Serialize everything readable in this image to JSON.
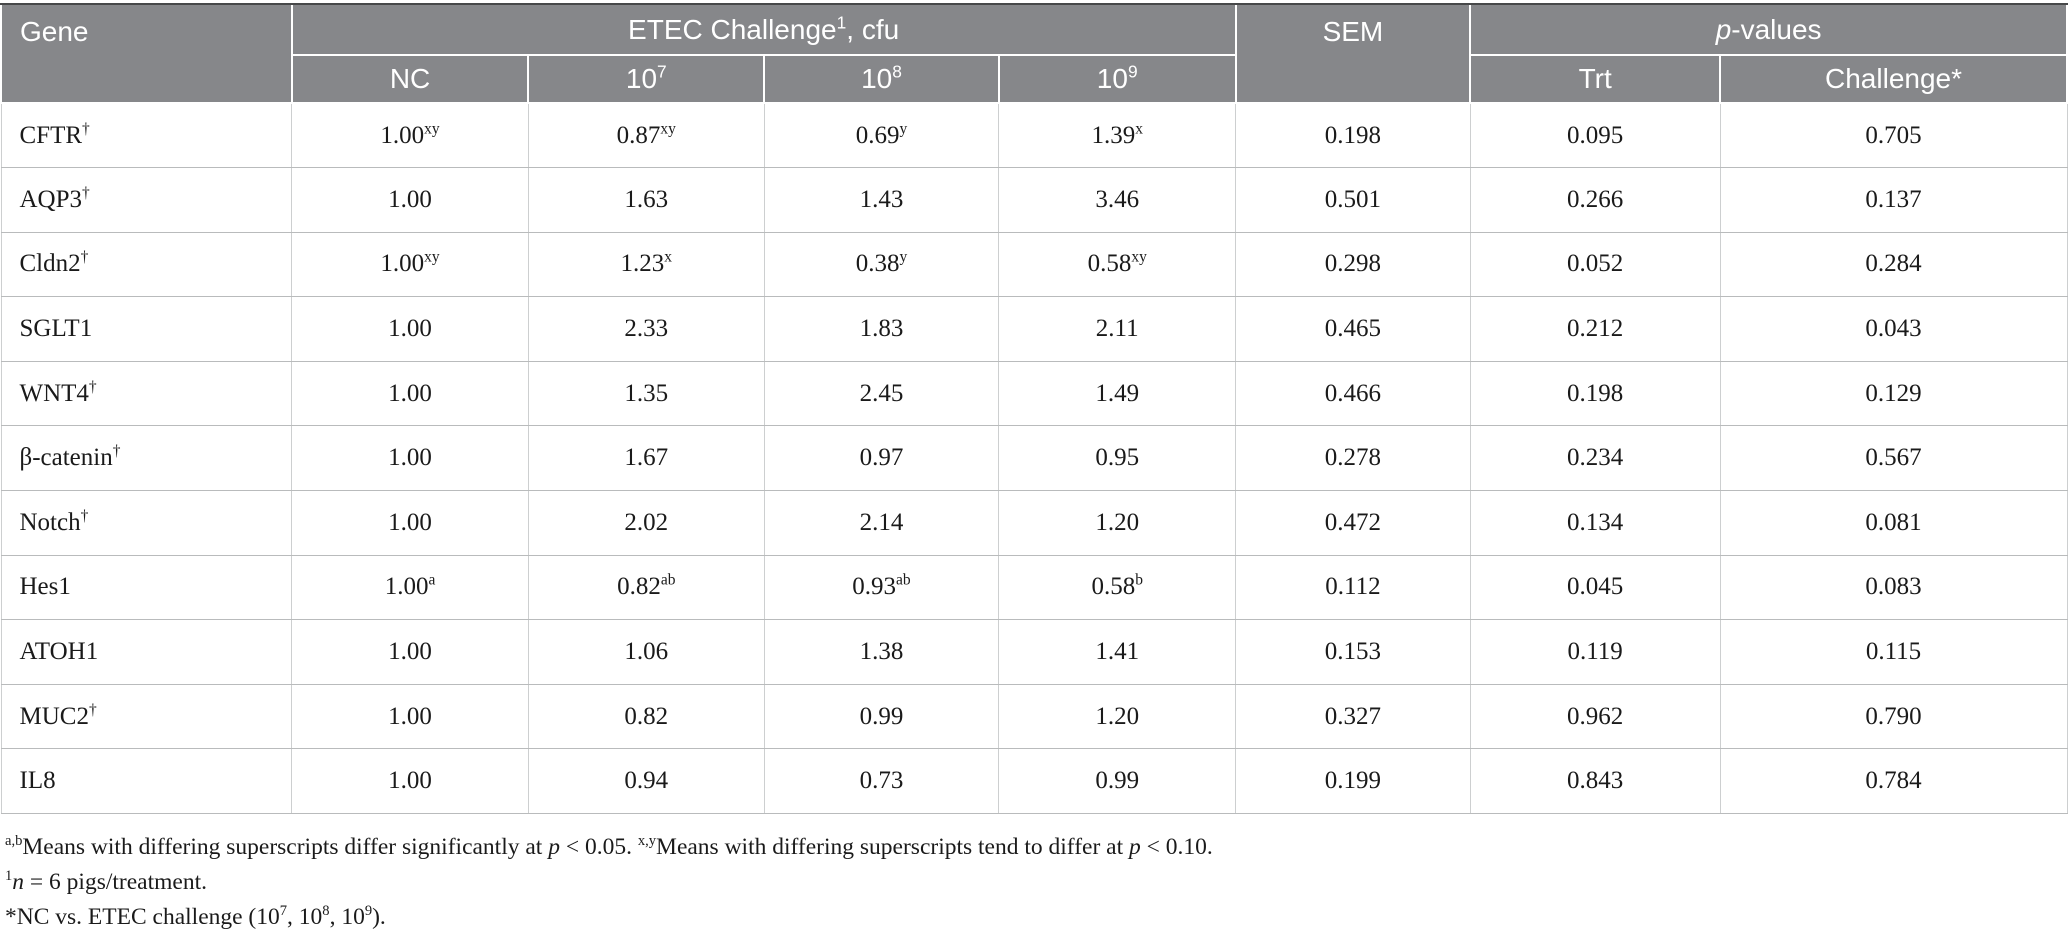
{
  "colors": {
    "header_bg": "#86878a",
    "header_text": "#ffffff",
    "body_text": "#1a1a1a",
    "grid_line": "#cdcfd0",
    "row_line": "#b9bbbc",
    "top_rule": "#474849"
  },
  "table": {
    "header": {
      "gene": "Gene",
      "etec": {
        "pre": "ETEC Challenge",
        "sup": "1",
        "post": ", cfu"
      },
      "sem": "SEM",
      "pvalues": {
        "i": "p",
        "post": "-values"
      },
      "sub": [
        {
          "text": "NC",
          "sup": ""
        },
        {
          "text": "10",
          "sup": "7"
        },
        {
          "text": "10",
          "sup": "8"
        },
        {
          "text": "10",
          "sup": "9"
        },
        {
          "text": "Trt",
          "sup": ""
        },
        {
          "text": "Challenge*",
          "sup": ""
        }
      ]
    },
    "rows": [
      {
        "gene": {
          "text": "CFTR",
          "sup": "†"
        },
        "values": [
          {
            "text": "1.00",
            "sup": "xy"
          },
          {
            "text": "0.87",
            "sup": "xy"
          },
          {
            "text": "0.69",
            "sup": "y"
          },
          {
            "text": "1.39",
            "sup": "x"
          },
          {
            "text": "0.198",
            "sup": ""
          },
          {
            "text": "0.095",
            "sup": ""
          },
          {
            "text": "0.705",
            "sup": ""
          }
        ]
      },
      {
        "gene": {
          "text": "AQP3",
          "sup": "†"
        },
        "values": [
          {
            "text": "1.00",
            "sup": ""
          },
          {
            "text": "1.63",
            "sup": ""
          },
          {
            "text": "1.43",
            "sup": ""
          },
          {
            "text": "3.46",
            "sup": ""
          },
          {
            "text": "0.501",
            "sup": ""
          },
          {
            "text": "0.266",
            "sup": ""
          },
          {
            "text": "0.137",
            "sup": ""
          }
        ]
      },
      {
        "gene": {
          "text": "Cldn2",
          "sup": "†"
        },
        "values": [
          {
            "text": "1.00",
            "sup": "xy"
          },
          {
            "text": "1.23",
            "sup": "x"
          },
          {
            "text": "0.38",
            "sup": "y"
          },
          {
            "text": "0.58",
            "sup": "xy"
          },
          {
            "text": "0.298",
            "sup": ""
          },
          {
            "text": "0.052",
            "sup": ""
          },
          {
            "text": "0.284",
            "sup": ""
          }
        ]
      },
      {
        "gene": {
          "text": "SGLT1",
          "sup": ""
        },
        "values": [
          {
            "text": "1.00",
            "sup": ""
          },
          {
            "text": "2.33",
            "sup": ""
          },
          {
            "text": "1.83",
            "sup": ""
          },
          {
            "text": "2.11",
            "sup": ""
          },
          {
            "text": "0.465",
            "sup": ""
          },
          {
            "text": "0.212",
            "sup": ""
          },
          {
            "text": "0.043",
            "sup": ""
          }
        ]
      },
      {
        "gene": {
          "text": "WNT4",
          "sup": "†"
        },
        "values": [
          {
            "text": "1.00",
            "sup": ""
          },
          {
            "text": "1.35",
            "sup": ""
          },
          {
            "text": "2.45",
            "sup": ""
          },
          {
            "text": "1.49",
            "sup": ""
          },
          {
            "text": "0.466",
            "sup": ""
          },
          {
            "text": "0.198",
            "sup": ""
          },
          {
            "text": "0.129",
            "sup": ""
          }
        ]
      },
      {
        "gene": {
          "text": "β-catenin",
          "sup": "†"
        },
        "values": [
          {
            "text": "1.00",
            "sup": ""
          },
          {
            "text": "1.67",
            "sup": ""
          },
          {
            "text": "0.97",
            "sup": ""
          },
          {
            "text": "0.95",
            "sup": ""
          },
          {
            "text": "0.278",
            "sup": ""
          },
          {
            "text": "0.234",
            "sup": ""
          },
          {
            "text": "0.567",
            "sup": ""
          }
        ]
      },
      {
        "gene": {
          "text": "Notch",
          "sup": "†"
        },
        "values": [
          {
            "text": "1.00",
            "sup": ""
          },
          {
            "text": "2.02",
            "sup": ""
          },
          {
            "text": "2.14",
            "sup": ""
          },
          {
            "text": "1.20",
            "sup": ""
          },
          {
            "text": "0.472",
            "sup": ""
          },
          {
            "text": "0.134",
            "sup": ""
          },
          {
            "text": "0.081",
            "sup": ""
          }
        ]
      },
      {
        "gene": {
          "text": "Hes1",
          "sup": ""
        },
        "values": [
          {
            "text": "1.00",
            "sup": "a"
          },
          {
            "text": "0.82",
            "sup": "ab"
          },
          {
            "text": "0.93",
            "sup": "ab"
          },
          {
            "text": "0.58",
            "sup": "b"
          },
          {
            "text": "0.112",
            "sup": ""
          },
          {
            "text": "0.045",
            "sup": ""
          },
          {
            "text": "0.083",
            "sup": ""
          }
        ]
      },
      {
        "gene": {
          "text": "ATOH1",
          "sup": ""
        },
        "values": [
          {
            "text": "1.00",
            "sup": ""
          },
          {
            "text": "1.06",
            "sup": ""
          },
          {
            "text": "1.38",
            "sup": ""
          },
          {
            "text": "1.41",
            "sup": ""
          },
          {
            "text": "0.153",
            "sup": ""
          },
          {
            "text": "0.119",
            "sup": ""
          },
          {
            "text": "0.115",
            "sup": ""
          }
        ]
      },
      {
        "gene": {
          "text": "MUC2",
          "sup": "†"
        },
        "values": [
          {
            "text": "1.00",
            "sup": ""
          },
          {
            "text": "0.82",
            "sup": ""
          },
          {
            "text": "0.99",
            "sup": ""
          },
          {
            "text": "1.20",
            "sup": ""
          },
          {
            "text": "0.327",
            "sup": ""
          },
          {
            "text": "0.962",
            "sup": ""
          },
          {
            "text": "0.790",
            "sup": ""
          }
        ]
      },
      {
        "gene": {
          "text": "IL8",
          "sup": ""
        },
        "values": [
          {
            "text": "1.00",
            "sup": ""
          },
          {
            "text": "0.94",
            "sup": ""
          },
          {
            "text": "0.73",
            "sup": ""
          },
          {
            "text": "0.99",
            "sup": ""
          },
          {
            "text": "0.199",
            "sup": ""
          },
          {
            "text": "0.843",
            "sup": ""
          },
          {
            "text": "0.784",
            "sup": ""
          }
        ]
      }
    ]
  },
  "footnotes": [
    [
      {
        "s": "sup",
        "v": "a,b"
      },
      {
        "v": "Means with differing superscripts differ significantly at "
      },
      {
        "s": "i",
        "v": "p"
      },
      {
        "v": " < 0.05. "
      },
      {
        "s": "sup",
        "v": "x,y"
      },
      {
        "v": "Means with differing superscripts tend to differ at "
      },
      {
        "s": "i",
        "v": "p"
      },
      {
        "v": " < 0.10."
      }
    ],
    [
      {
        "s": "sup",
        "v": "1"
      },
      {
        "s": "i",
        "v": "n"
      },
      {
        "v": " = 6 pigs/treatment."
      }
    ],
    [
      {
        "v": "*NC vs. ETEC challenge (10"
      },
      {
        "s": "sup",
        "v": "7"
      },
      {
        "v": ", 10"
      },
      {
        "s": "sup",
        "v": "8"
      },
      {
        "v": ", 10"
      },
      {
        "s": "sup",
        "v": "9"
      },
      {
        "v": ")."
      }
    ]
  ]
}
